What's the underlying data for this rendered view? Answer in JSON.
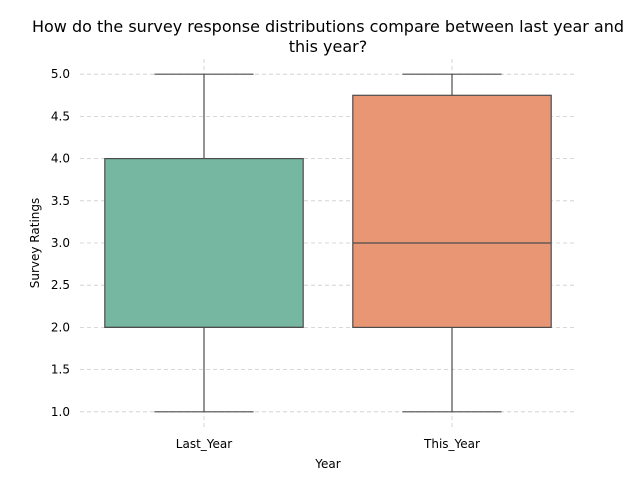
{
  "chart_data": {
    "type": "box",
    "title_lines": [
      "How do the survey response distributions compare between last year and",
      "this year?"
    ],
    "xlabel": "Year",
    "ylabel": "Survey Ratings",
    "ylim": [
      0.82,
      5.18
    ],
    "yticks": [
      1.0,
      1.5,
      2.0,
      2.5,
      3.0,
      3.5,
      4.0,
      4.5,
      5.0
    ],
    "ytick_labels": [
      "1.0",
      "1.5",
      "2.0",
      "2.5",
      "3.0",
      "3.5",
      "4.0",
      "4.5",
      "5.0"
    ],
    "grid": true,
    "categories": [
      "Last_Year",
      "This_Year"
    ],
    "boxes": [
      {
        "category": "Last_Year",
        "whisker_low": 1.0,
        "q1": 2.0,
        "median": 2.0,
        "q3": 4.0,
        "whisker_high": 5.0,
        "color": "#76b7a1"
      },
      {
        "category": "This_Year",
        "whisker_low": 1.0,
        "q1": 2.0,
        "median": 3.0,
        "q3": 4.75,
        "whisker_high": 5.0,
        "color": "#e99675"
      }
    ],
    "line_color": "#4d4d4d"
  }
}
